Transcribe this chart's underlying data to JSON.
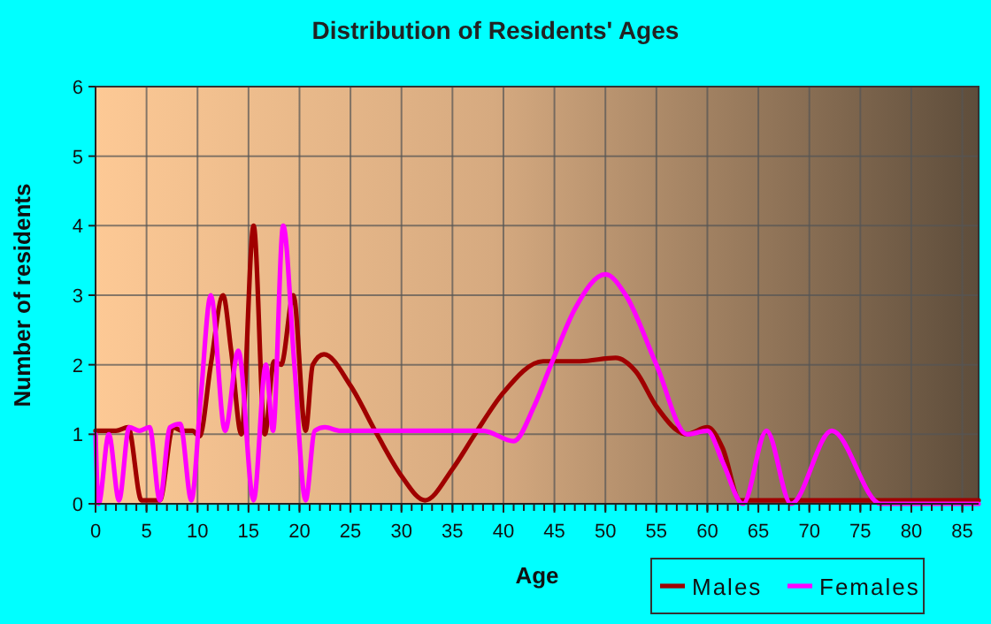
{
  "chart_data": {
    "type": "line",
    "title": "Distribution of Residents' Ages",
    "xlabel": "Age",
    "ylabel": "Number of residents",
    "xlim": [
      0,
      86.6
    ],
    "xticks": [
      0,
      5,
      10,
      15,
      20,
      25,
      30,
      35,
      40,
      45,
      50,
      55,
      60,
      65,
      70,
      75,
      80,
      85
    ],
    "ylim": [
      0,
      6
    ],
    "yticks": [
      0,
      1,
      2,
      3,
      4,
      5,
      6
    ],
    "grid": true,
    "legend": "bottom right",
    "line_style": "solid",
    "marker": "none",
    "series": [
      {
        "name": "Males",
        "color": "#a00000",
        "x": [
          0,
          1,
          2,
          3.2,
          4.5,
          5.5,
          6.3,
          7.6,
          8.5,
          9.5,
          10.2,
          11.3,
          12.5,
          13.3,
          14.3,
          15.5,
          16.6,
          17.5,
          18.2,
          19.4,
          20.6,
          21.3,
          22.4,
          25,
          27.6,
          30,
          32.3,
          35,
          37.2,
          40,
          43.9,
          47.5,
          51,
          53,
          55,
          58,
          60,
          61.5,
          63.2,
          70,
          80,
          86.6
        ],
        "values": [
          1.05,
          1.05,
          1.05,
          1.1,
          0.05,
          0.05,
          0.05,
          1.1,
          1.05,
          1.05,
          0.97,
          2,
          3,
          2.2,
          1,
          4,
          1,
          2.05,
          2,
          3,
          1.05,
          2,
          2.15,
          1.7,
          1,
          0.4,
          0.05,
          0.5,
          1,
          1.6,
          2.05,
          2.05,
          2.1,
          1.9,
          1.4,
          1,
          1.1,
          0.8,
          0.05,
          0.05,
          0.05,
          0.05
        ]
      },
      {
        "name": "Females",
        "color": "#ff00ff",
        "x": [
          0,
          0.3,
          1.3,
          2.3,
          3.3,
          4.3,
          5.3,
          6.3,
          7.3,
          8.3,
          9.4,
          10.3,
          11.3,
          12.7,
          14,
          15.5,
          16.7,
          17.4,
          18.4,
          19.5,
          20.6,
          21.5,
          22.5,
          24,
          30,
          38,
          41,
          43,
          44.8,
          47,
          50,
          52,
          55,
          58,
          60,
          61.5,
          63.5,
          65.8,
          68.2,
          72.2,
          77,
          80,
          86.6
        ],
        "values": [
          1,
          0,
          1,
          0.05,
          1.1,
          1.05,
          1.1,
          0.05,
          1.1,
          1.15,
          0.05,
          1.5,
          3,
          1.05,
          2.2,
          0.05,
          2,
          1.05,
          4,
          2,
          0.05,
          1.05,
          1.1,
          1.05,
          1.05,
          1.05,
          0.9,
          1.4,
          2.05,
          2.8,
          3.3,
          3,
          2,
          1,
          1.05,
          0.6,
          0,
          1.05,
          0,
          1.05,
          0,
          0,
          0
        ]
      }
    ]
  }
}
